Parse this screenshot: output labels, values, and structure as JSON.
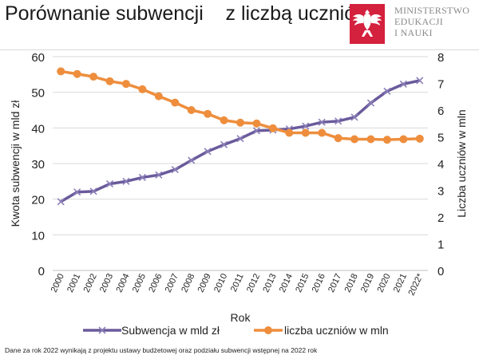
{
  "header": {
    "title": "Porównanie subwencji    z liczbą uczniów",
    "ministry_lines": [
      "MINISTERSTWO",
      "EDUKACJI",
      "I NAUKI"
    ]
  },
  "footnote": "Dane za rok 2022 wynikają z projektu ustawy  budżetowej oraz podziału subwencji wstępnej na 2022 rok",
  "colors": {
    "subwencja": "#6a5a9b",
    "uczniowie": "#ee8e3d",
    "eagle_red": "#d4213d"
  },
  "chart_data": {
    "type": "line",
    "xlabel": "Rok",
    "ylabel_left": "Kwota subwencji w mld zł",
    "ylabel_right": "Liczba uczniów w mln",
    "ylim_left": [
      0,
      60
    ],
    "yticks_left": [
      "0",
      "10",
      "20",
      "30",
      "40",
      "50",
      "60"
    ],
    "ylim_right": [
      0,
      8
    ],
    "yticks_right": [
      "0",
      "1",
      "2",
      "3",
      "4",
      "5",
      "6",
      "7",
      "8"
    ],
    "categories": [
      "2000",
      "2001",
      "2002",
      "2003",
      "2004",
      "2005",
      "2006",
      "2007",
      "2008",
      "2009",
      "2010",
      "2011",
      "2012",
      "2013",
      "2014",
      "2015",
      "2016",
      "2017",
      "2018",
      "2019",
      "2020",
      "2021",
      "2022*"
    ],
    "series": [
      {
        "name": "Subwencja w mld zł",
        "axis": "left",
        "marker": "x",
        "values": [
          19.3,
          22.0,
          22.2,
          24.3,
          25.0,
          26.1,
          26.8,
          28.3,
          30.9,
          33.4,
          35.3,
          37.0,
          39.2,
          39.4,
          39.7,
          40.5,
          41.6,
          41.9,
          43.0,
          47.0,
          50.3,
          52.3,
          53.3
        ]
      },
      {
        "name": "liczba uczniów w mln",
        "axis": "right",
        "marker": "circle",
        "values": [
          7.45,
          7.35,
          7.25,
          7.08,
          6.98,
          6.78,
          6.52,
          6.28,
          6.0,
          5.86,
          5.62,
          5.53,
          5.5,
          5.32,
          5.15,
          5.15,
          5.15,
          4.95,
          4.91,
          4.91,
          4.89,
          4.91,
          4.93
        ]
      }
    ],
    "legend": [
      {
        "label": "Subwencja w mld zł",
        "marker": "x"
      },
      {
        "label": "liczba uczniów w mln",
        "marker": "circle"
      }
    ]
  }
}
